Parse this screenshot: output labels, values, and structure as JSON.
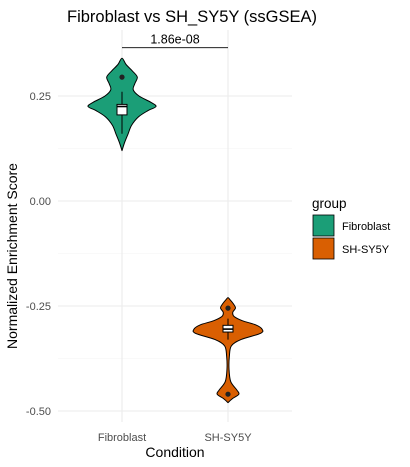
{
  "chart_data": {
    "type": "violin",
    "title": "Fibroblast vs SH_SY5Y (ssGSEA)",
    "xlabel": "Condition",
    "ylabel": "Normalized Enrichment Score",
    "categories": [
      "Fibroblast",
      "SH-SY5Y"
    ],
    "ylim": [
      -0.52,
      0.38
    ],
    "yticks": [
      0.25,
      0.0,
      -0.25,
      -0.5
    ],
    "ytick_labels": [
      "0.25",
      "0.00",
      "-0.25",
      "-0.50"
    ],
    "grid": true,
    "legend": {
      "title": "group",
      "placement": "right",
      "entries": [
        {
          "label": "Fibroblast",
          "color": "#1b9e77"
        },
        {
          "label": "SH-SY5Y",
          "color": "#d95f02"
        }
      ]
    },
    "series": [
      {
        "category": "Fibroblast",
        "color": "#1b9e77",
        "y_min": 0.12,
        "y_max": 0.34,
        "median": 0.225,
        "q1": 0.205,
        "q3": 0.23,
        "whisker_low": 0.16,
        "whisker_high": 0.26,
        "outliers": [
          0.295
        ],
        "density": [
          [
            0.12,
            0.0
          ],
          [
            0.14,
            0.08
          ],
          [
            0.16,
            0.18
          ],
          [
            0.18,
            0.28
          ],
          [
            0.2,
            0.48
          ],
          [
            0.215,
            0.76
          ],
          [
            0.225,
            1.0
          ],
          [
            0.235,
            0.85
          ],
          [
            0.25,
            0.5
          ],
          [
            0.265,
            0.33
          ],
          [
            0.28,
            0.38
          ],
          [
            0.295,
            0.45
          ],
          [
            0.31,
            0.3
          ],
          [
            0.325,
            0.12
          ],
          [
            0.34,
            0.0
          ]
        ]
      },
      {
        "category": "SH-SY5Y",
        "color": "#d95f02",
        "y_min": -0.48,
        "y_max": -0.23,
        "median": -0.305,
        "q1": -0.312,
        "q3": -0.296,
        "whisker_low": -0.33,
        "whisker_high": -0.28,
        "outliers": [
          -0.255,
          -0.46
        ],
        "density": [
          [
            -0.48,
            0.0
          ],
          [
            -0.47,
            0.14
          ],
          [
            -0.46,
            0.32
          ],
          [
            -0.45,
            0.26
          ],
          [
            -0.43,
            0.08
          ],
          [
            -0.4,
            0.03
          ],
          [
            -0.37,
            0.04
          ],
          [
            -0.345,
            0.1
          ],
          [
            -0.33,
            0.38
          ],
          [
            -0.315,
            0.96
          ],
          [
            -0.305,
            1.0
          ],
          [
            -0.295,
            0.82
          ],
          [
            -0.285,
            0.42
          ],
          [
            -0.275,
            0.18
          ],
          [
            -0.265,
            0.14
          ],
          [
            -0.255,
            0.22
          ],
          [
            -0.245,
            0.16
          ],
          [
            -0.235,
            0.06
          ],
          [
            -0.23,
            0.0
          ]
        ]
      }
    ],
    "annotations": [
      {
        "text": "1.86e-08",
        "between": [
          "Fibroblast",
          "SH-SY5Y"
        ],
        "y": 0.365
      }
    ]
  }
}
